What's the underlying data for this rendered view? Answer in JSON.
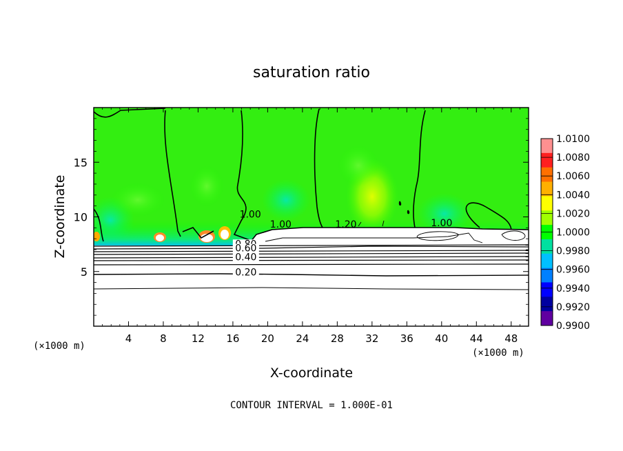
{
  "chart_data": {
    "type": "heatmap",
    "title": "saturation ratio",
    "xlabel": "X-coordinate",
    "ylabel": "Z-coordinate",
    "x_unit_left": "(×1000 m)",
    "x_unit_right": "(×1000 m)",
    "xlim": [
      0,
      50
    ],
    "ylim": [
      0,
      20
    ],
    "x_ticks": [
      4,
      8,
      12,
      16,
      20,
      24,
      28,
      32,
      36,
      40,
      44,
      48
    ],
    "y_ticks": [
      5,
      10,
      15
    ],
    "footer": "CONTOUR INTERVAL = 1.000E-01",
    "colorbar": {
      "min": 0.99,
      "max": 1.01,
      "labels": [
        "1.0100",
        "1.0080",
        "1.0060",
        "1.0040",
        "1.0020",
        "1.0000",
        "0.9980",
        "0.9960",
        "0.9940",
        "0.9920",
        "0.9900"
      ],
      "colors": [
        "#ff9090",
        "#ff2020",
        "#ff7000",
        "#ffb000",
        "#ffff00",
        "#a0ff00",
        "#00ff00",
        "#00e0a0",
        "#00c0ff",
        "#0080ff",
        "#0000ff",
        "#0000a0",
        "#6000a0"
      ]
    },
    "contour_labels": [
      {
        "text": "1.00",
        "x": 18.0,
        "z": 10.0
      },
      {
        "text": "1.00",
        "x": 21.5,
        "z": 9.1
      },
      {
        "text": "1.20",
        "x": 29.0,
        "z": 9.1
      },
      {
        "text": "1.00",
        "x": 40.0,
        "z": 9.2
      },
      {
        "text": "0.80",
        "x": 17.5,
        "z": 7.3
      },
      {
        "text": "0.60",
        "x": 17.5,
        "z": 6.9
      },
      {
        "text": "0.40",
        "x": 17.5,
        "z": 6.1
      },
      {
        "text": "0.20",
        "x": 17.5,
        "z": 4.7
      }
    ]
  }
}
